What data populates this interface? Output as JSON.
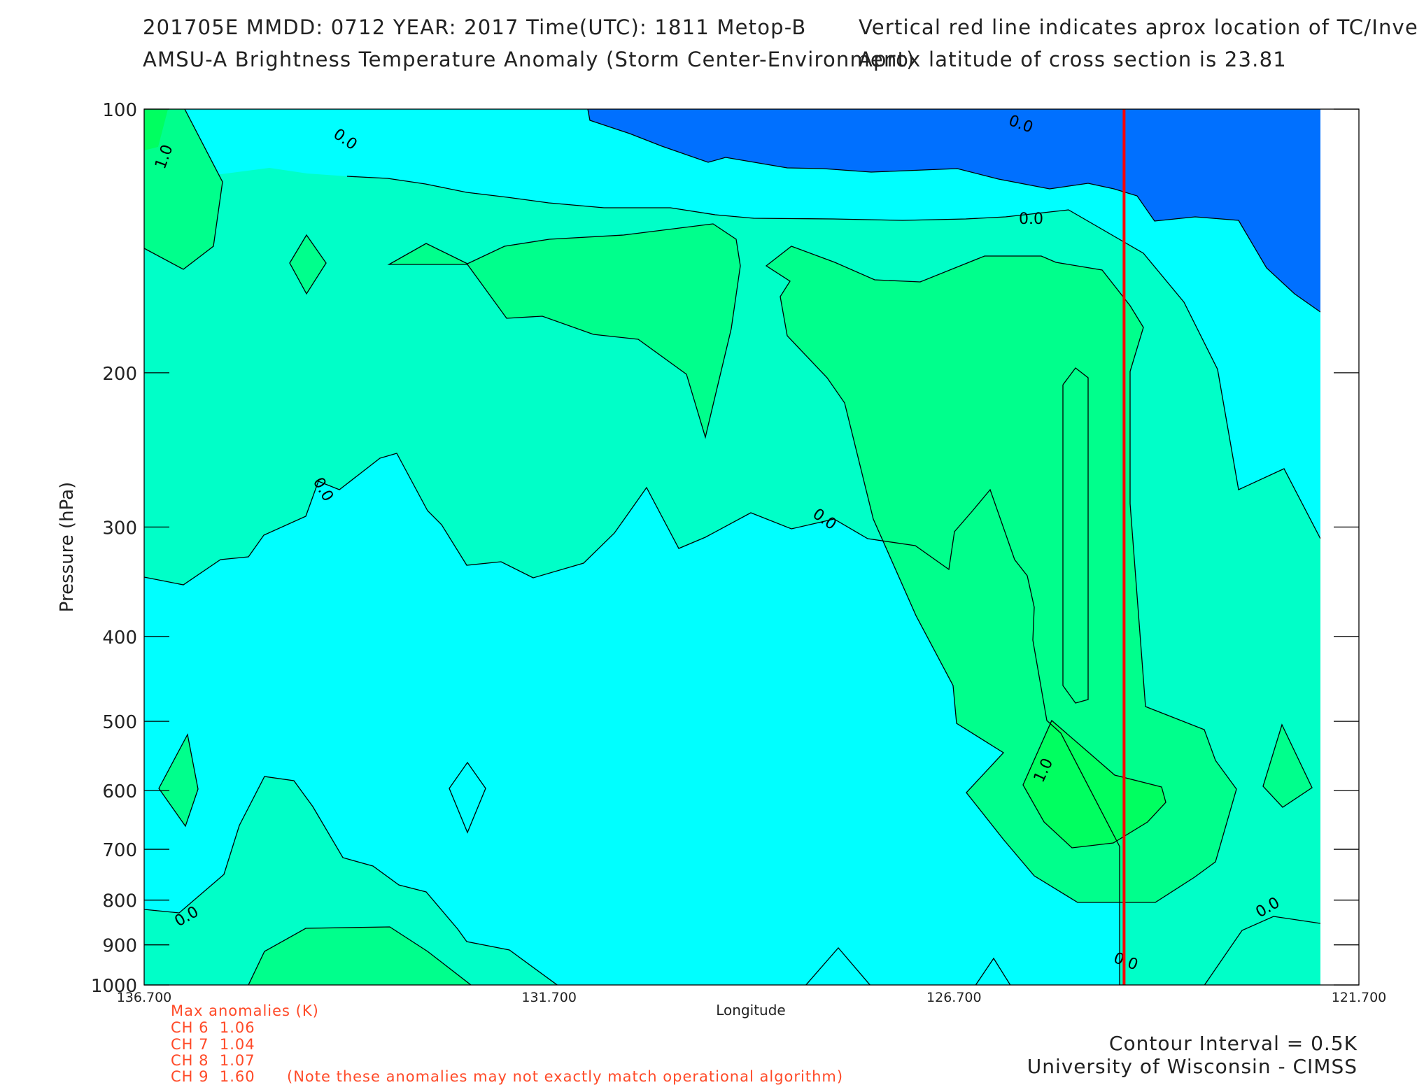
{
  "header": {
    "line1_left": "201705E  MMDD: 0712 YEAR: 2017 Time(UTC): 1811 Metop-B",
    "line2_left": "AMSU-A Brightness Temperature Anomaly (Storm Center-Environment)",
    "line1_right": "Vertical red line indicates aprox location of TC/Invest",
    "line2_right": "Aprox latitude of cross section is 23.81"
  },
  "max_anomalies": {
    "title": "Max anomalies (K)",
    "rows": [
      {
        "label": "CH 6",
        "value": "1.06"
      },
      {
        "label": "CH 7",
        "value": "1.04"
      },
      {
        "label": "CH 8",
        "value": "1.07"
      },
      {
        "label": "CH 9",
        "value": "1.60"
      }
    ],
    "note": "(Note these anomalies may not exactly match operational algorithm)"
  },
  "footer": {
    "contour_interval": "Contour Interval = 0.5K",
    "credit": "University of Wisconsin - CIMSS"
  },
  "colors": {
    "level_neg": "#0070ff",
    "level_0": "#00ffff",
    "level_0_5": "#00ffc8",
    "level_1_0": "#00ff8c",
    "level_1_5": "#00ff60",
    "tc_line": "#ff0000"
  },
  "chart_data": {
    "type": "contour",
    "xlabel": "Longitude",
    "ylabel": "Pressure (hPa)",
    "x_ticks": [
      "136.700",
      "131.700",
      "126.700",
      "121.700"
    ],
    "x_range": [
      136.7,
      121.7
    ],
    "y_ticks": [
      "100",
      "200",
      "300",
      "400",
      "500",
      "600",
      "700",
      "800",
      "900",
      "1000"
    ],
    "y_range": [
      100,
      1000
    ],
    "y_scale": "log",
    "contour_interval": 0.5,
    "contour_labels": [
      "0.0",
      "1.0"
    ],
    "tc_longitude": 124.6,
    "cross_section_latitude": 23.81
  }
}
